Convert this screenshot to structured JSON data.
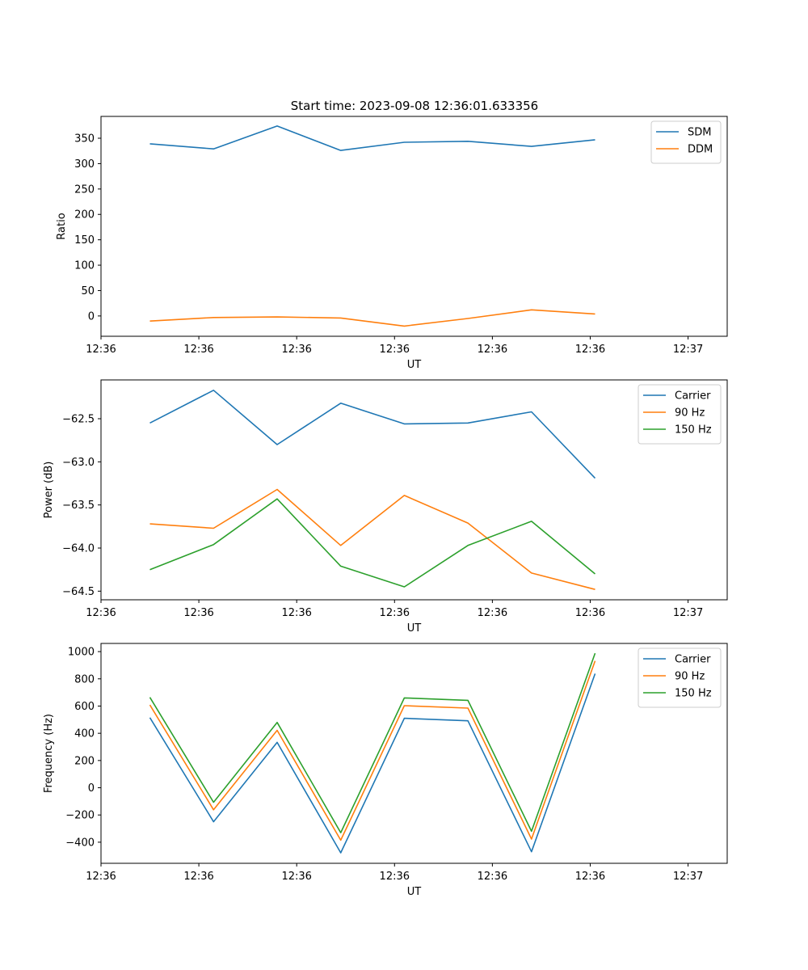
{
  "chart_data": [
    {
      "type": "line",
      "title": "Start time: 2023-09-08 12:36:01.633356",
      "xlabel": "UT",
      "ylabel": "Ratio",
      "xlim": [
        0,
        6.4
      ],
      "ylim": [
        -40,
        393
      ],
      "x_tick_positions": [
        0,
        1,
        2,
        3,
        4,
        5,
        6
      ],
      "x_tick_labels": [
        "12:36",
        "12:36",
        "12:36",
        "12:36",
        "12:36",
        "12:36",
        "12:37"
      ],
      "yticks": [
        0,
        50,
        100,
        150,
        200,
        250,
        300,
        350
      ],
      "x": [
        0.5,
        1.15,
        1.8,
        2.45,
        3.1,
        3.75,
        4.4,
        5.05
      ],
      "legend_position": "top-right",
      "series": [
        {
          "name": "SDM",
          "color": "#1f77b4",
          "values": [
            339,
            329,
            374,
            326,
            342,
            344,
            334,
            347
          ]
        },
        {
          "name": "DDM",
          "color": "#ff7f0e",
          "values": [
            -10,
            -3,
            -2,
            -4,
            -20,
            -5,
            12,
            4
          ]
        }
      ]
    },
    {
      "type": "line",
      "title": "",
      "xlabel": "UT",
      "ylabel": "Power (dB)",
      "xlim": [
        0,
        6.4
      ],
      "ylim": [
        -64.6,
        -62.05
      ],
      "x_tick_positions": [
        0,
        1,
        2,
        3,
        4,
        5,
        6
      ],
      "x_tick_labels": [
        "12:36",
        "12:36",
        "12:36",
        "12:36",
        "12:36",
        "12:36",
        "12:37"
      ],
      "yticks": [
        -64.5,
        -64.0,
        -63.5,
        -63.0,
        -62.5
      ],
      "ytick_labels": [
        "−64.5",
        "−64.0",
        "−63.5",
        "−63.0",
        "−62.5"
      ],
      "x": [
        0.5,
        1.15,
        1.8,
        2.45,
        3.1,
        3.75,
        4.4,
        5.05
      ],
      "legend_position": "top-right",
      "series": [
        {
          "name": "Carrier",
          "color": "#1f77b4",
          "values": [
            -62.55,
            -62.17,
            -62.8,
            -62.32,
            -62.56,
            -62.55,
            -62.42,
            -63.19
          ]
        },
        {
          "name": "90 Hz",
          "color": "#ff7f0e",
          "values": [
            -63.72,
            -63.77,
            -63.32,
            -63.97,
            -63.39,
            -63.71,
            -64.29,
            -64.48
          ]
        },
        {
          "name": "150 Hz",
          "color": "#2ca02c",
          "values": [
            -64.25,
            -63.96,
            -63.43,
            -64.21,
            -64.45,
            -63.97,
            -63.69,
            -64.3
          ]
        }
      ]
    },
    {
      "type": "line",
      "title": "",
      "xlabel": "UT",
      "ylabel": "Frequency (Hz)",
      "xlim": [
        0,
        6.4
      ],
      "ylim": [
        -555,
        1060
      ],
      "x_tick_positions": [
        0,
        1,
        2,
        3,
        4,
        5,
        6
      ],
      "x_tick_labels": [
        "12:36",
        "12:36",
        "12:36",
        "12:36",
        "12:36",
        "12:36",
        "12:37"
      ],
      "yticks": [
        -400,
        -200,
        0,
        200,
        400,
        600,
        800,
        1000
      ],
      "ytick_labels": [
        "−400",
        "−200",
        "0",
        "200",
        "400",
        "600",
        "800",
        "1000"
      ],
      "x": [
        0.5,
        1.15,
        1.8,
        2.45,
        3.1,
        3.75,
        4.4,
        5.05
      ],
      "legend_position": "top-right",
      "series": [
        {
          "name": "Carrier",
          "color": "#1f77b4",
          "values": [
            515,
            -250,
            333,
            -478,
            510,
            492,
            -470,
            838
          ]
        },
        {
          "name": "90 Hz",
          "color": "#ff7f0e",
          "values": [
            608,
            -162,
            422,
            -385,
            603,
            585,
            -377,
            932
          ]
        },
        {
          "name": "150 Hz",
          "color": "#2ca02c",
          "values": [
            664,
            -107,
            480,
            -330,
            660,
            642,
            -320,
            988
          ]
        }
      ]
    }
  ]
}
